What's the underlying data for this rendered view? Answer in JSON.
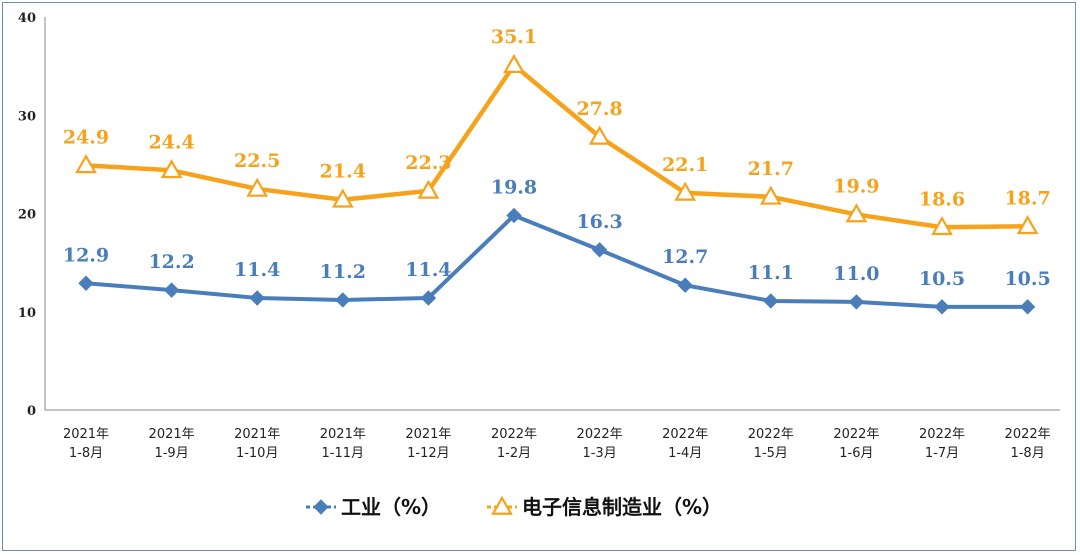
{
  "chart_data": {
    "type": "line",
    "title": "",
    "xlabel": "",
    "ylabel": "",
    "ylim": [
      0,
      40
    ],
    "yticks": [
      "0",
      "10",
      "20",
      "30",
      "40"
    ],
    "categories": [
      [
        "2021年",
        "1-8月"
      ],
      [
        "2021年",
        "1-9月"
      ],
      [
        "2021年",
        "1-10月"
      ],
      [
        "2021年",
        "1-11月"
      ],
      [
        "2021年",
        "1-12月"
      ],
      [
        "2022年",
        "1-2月"
      ],
      [
        "2022年",
        "1-3月"
      ],
      [
        "2022年",
        "1-4月"
      ],
      [
        "2022年",
        "1-5月"
      ],
      [
        "2022年",
        "1-6月"
      ],
      [
        "2022年",
        "1-7月"
      ],
      [
        "2022年",
        "1-8月"
      ]
    ],
    "series": [
      {
        "name": "工业（%）",
        "color": "#4a7ebb",
        "marker": "diamond",
        "values": [
          12.9,
          12.2,
          11.4,
          11.2,
          11.4,
          19.8,
          16.3,
          12.7,
          11.1,
          11.0,
          10.5,
          10.5
        ],
        "labels": [
          "12.9",
          "12.2",
          "11.4",
          "11.2",
          "11.4",
          "19.8",
          "16.3",
          "12.7",
          "11.1",
          "11.0",
          "10.5",
          "10.5"
        ]
      },
      {
        "name": "电子信息制造业（%）",
        "color": "#f7a21b",
        "marker": "triangle",
        "values": [
          24.9,
          24.4,
          22.5,
          21.4,
          22.3,
          35.1,
          27.8,
          22.1,
          21.7,
          19.9,
          18.6,
          18.7
        ],
        "labels": [
          "24.9",
          "24.4",
          "22.5",
          "21.4",
          "22.3",
          "35.1",
          "27.8",
          "22.1",
          "21.7",
          "19.9",
          "18.6",
          "18.7"
        ]
      }
    ],
    "legend": "bottom-center",
    "grid": false
  }
}
